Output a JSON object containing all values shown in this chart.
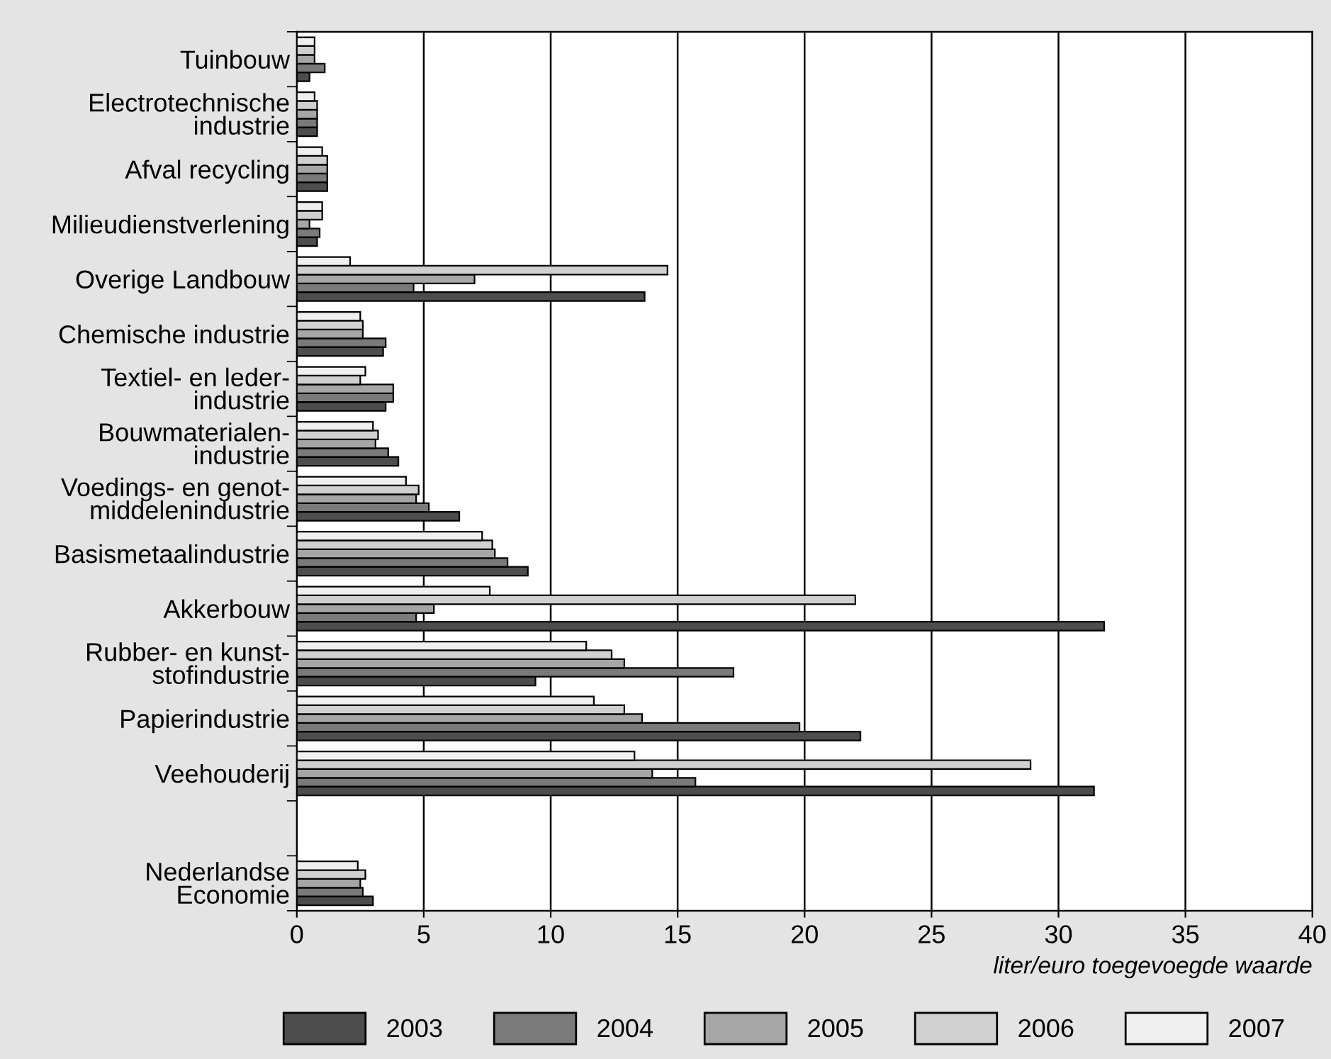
{
  "chart_data": {
    "type": "bar",
    "orientation": "horizontal",
    "categories": [
      "Tuinbouw",
      "Electrotechnische\nindustrie",
      "Afval recycling",
      "Milieudienstverlening",
      "Overige Landbouw",
      "Chemische industrie",
      "Textiel- en leder-\nindustrie",
      "Bouwmaterialen-\nindustrie",
      "Voedings- en genot-\nmiddelenindustrie",
      "Basismetaalindustrie",
      "Akkerbouw",
      "Rubber- en kunst-\nstofindustrie",
      "Papierindustrie",
      "Veehouderij",
      null,
      "Nederlandse\nEconomie"
    ],
    "series": [
      {
        "name": "2003",
        "color": "#4d4d4d",
        "values": [
          0.5,
          0.8,
          1.2,
          0.8,
          13.7,
          3.4,
          3.5,
          4.0,
          6.4,
          9.1,
          31.8,
          9.4,
          22.2,
          31.4,
          null,
          3.0
        ]
      },
      {
        "name": "2004",
        "color": "#7a7a7a",
        "values": [
          1.1,
          0.8,
          1.2,
          0.9,
          4.6,
          3.5,
          3.8,
          3.6,
          5.2,
          8.3,
          4.7,
          17.2,
          19.8,
          15.7,
          null,
          2.6
        ]
      },
      {
        "name": "2005",
        "color": "#a6a6a6",
        "values": [
          0.7,
          0.8,
          1.2,
          0.5,
          7.0,
          2.6,
          3.8,
          3.1,
          4.7,
          7.8,
          5.4,
          12.9,
          13.6,
          14.0,
          null,
          2.5
        ]
      },
      {
        "name": "2006",
        "color": "#d0d0d0",
        "values": [
          0.7,
          0.8,
          1.2,
          1.0,
          14.6,
          2.6,
          2.5,
          3.2,
          4.8,
          7.7,
          22.0,
          12.4,
          12.9,
          28.9,
          null,
          2.7
        ]
      },
      {
        "name": "2007",
        "color": "#efefef",
        "values": [
          0.7,
          0.7,
          1.0,
          1.0,
          2.1,
          2.5,
          2.7,
          3.0,
          4.3,
          7.3,
          7.6,
          11.4,
          11.7,
          13.3,
          null,
          2.4
        ]
      }
    ],
    "xlim": [
      0,
      40
    ],
    "xticks": [
      0,
      5,
      10,
      15,
      20,
      25,
      30,
      35,
      40
    ],
    "xlabel": "liter/euro toegevoegde waarde",
    "grid": "x",
    "legend": "bottom"
  }
}
